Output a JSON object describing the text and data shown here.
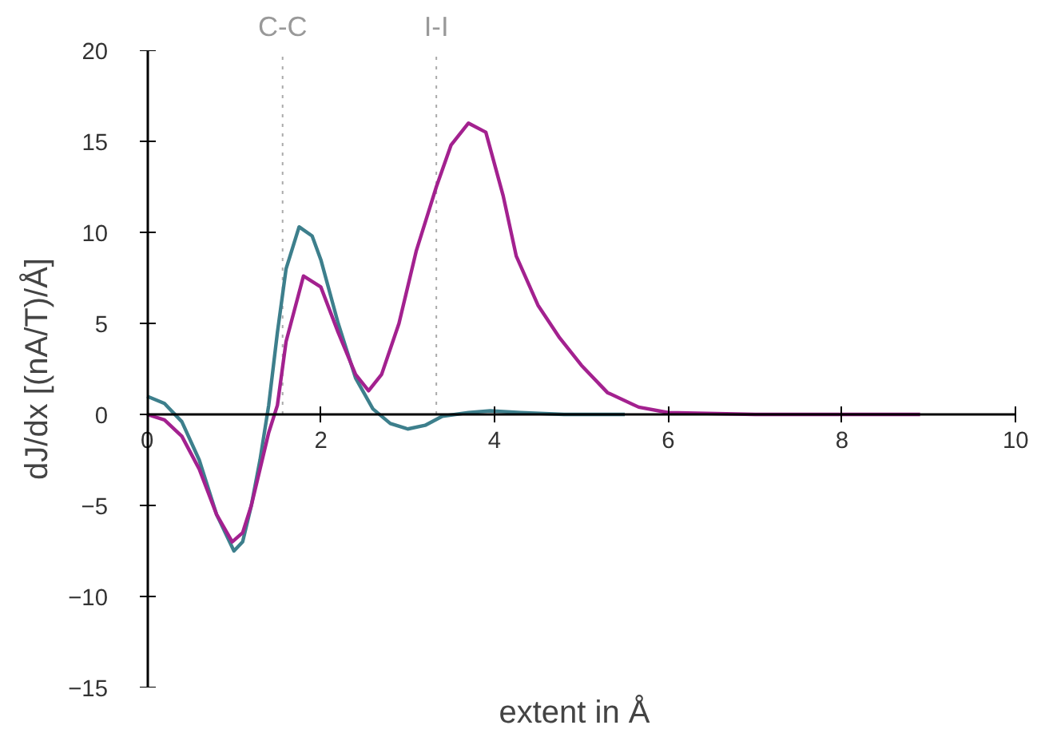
{
  "chart_data": {
    "type": "line",
    "xlabel": "extent in Å",
    "ylabel": "dJ/dx [(nA/T)/Å]",
    "xlim": [
      0,
      10
    ],
    "ylim": [
      -15,
      20
    ],
    "xticks": [
      0,
      2,
      4,
      6,
      8,
      10
    ],
    "yticks": [
      -15,
      -10,
      -5,
      0,
      5,
      10,
      15,
      20
    ],
    "marker": "none",
    "line_style": "solid",
    "ref_lines": [
      {
        "axis": "x",
        "value": 1.56,
        "label": "C-C",
        "color": "#aaaaaa",
        "line_style": "dotted"
      },
      {
        "axis": "x",
        "value": 3.33,
        "label": "I-I",
        "color": "#aaaaaa",
        "line_style": "dotted"
      }
    ],
    "series": [
      {
        "color": "#3d7f8c",
        "x": [
          0,
          0.2,
          0.4,
          0.6,
          0.8,
          1.0,
          1.1,
          1.2,
          1.3,
          1.4,
          1.5,
          1.6,
          1.75,
          1.9,
          2.0,
          2.2,
          2.4,
          2.6,
          2.8,
          3.0,
          3.2,
          3.4,
          3.7,
          3.95,
          4.3,
          4.8,
          5.5
        ],
        "values": [
          1.0,
          0.6,
          -0.4,
          -2.5,
          -5.5,
          -7.5,
          -7.0,
          -5.0,
          -2.5,
          0.5,
          4.5,
          8.0,
          10.3,
          9.8,
          8.5,
          5.0,
          2.0,
          0.3,
          -0.5,
          -0.8,
          -0.6,
          -0.1,
          0.1,
          0.2,
          0.1,
          0.0,
          0.0
        ]
      },
      {
        "color": "#a3218f",
        "x": [
          0,
          0.2,
          0.4,
          0.6,
          0.8,
          0.98,
          1.1,
          1.2,
          1.3,
          1.4,
          1.5,
          1.6,
          1.8,
          2.0,
          2.2,
          2.4,
          2.55,
          2.7,
          2.9,
          3.1,
          3.33,
          3.5,
          3.7,
          3.9,
          4.1,
          4.25,
          4.5,
          4.75,
          5.0,
          5.3,
          5.66,
          6.0,
          7.0,
          8.0,
          8.9
        ],
        "values": [
          0,
          -0.3,
          -1.2,
          -3.0,
          -5.5,
          -7.0,
          -6.5,
          -5.0,
          -3.0,
          -1.0,
          0.5,
          4.0,
          7.6,
          7.0,
          4.5,
          2.2,
          1.3,
          2.2,
          5.0,
          9.0,
          12.5,
          14.8,
          16.0,
          15.5,
          12.0,
          8.7,
          6.0,
          4.2,
          2.7,
          1.2,
          0.4,
          0.1,
          0,
          0,
          0
        ]
      }
    ]
  }
}
